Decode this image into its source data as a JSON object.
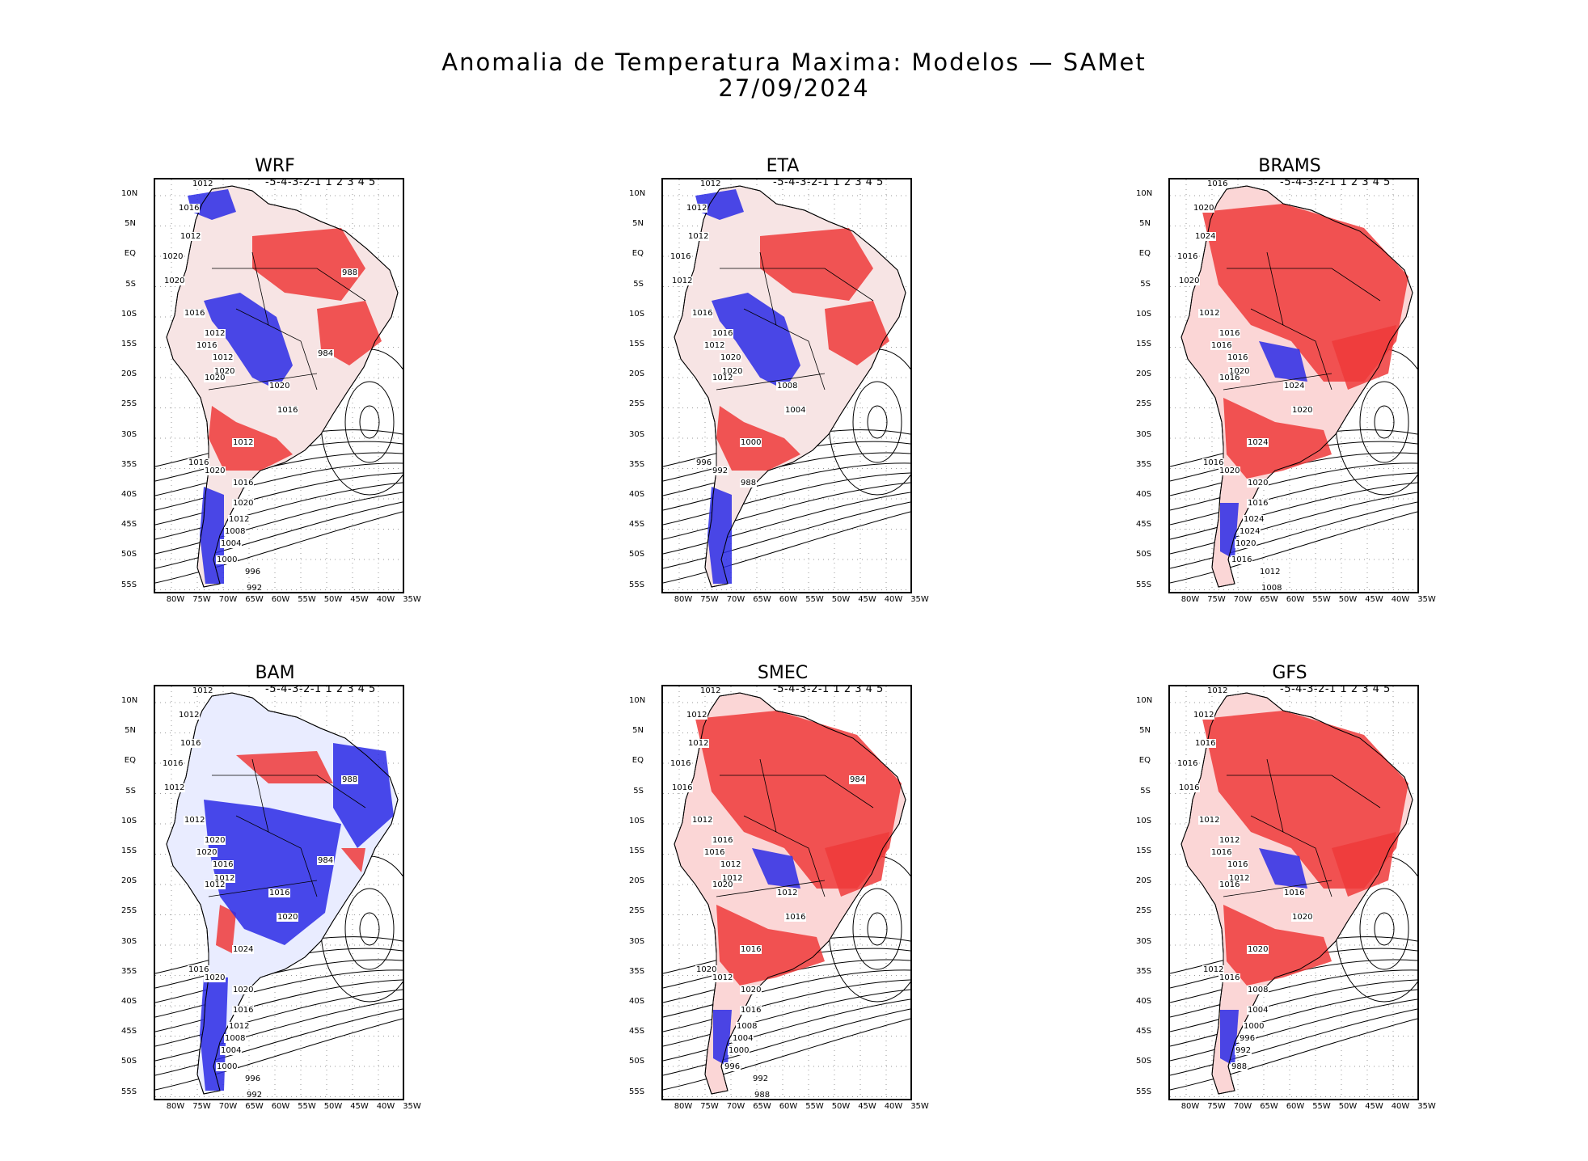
{
  "title": {
    "line1": "Anomalia de Temperatura Maxima: Modelos — SAMet",
    "line2": "27/09/2024"
  },
  "axes": {
    "lat_ticks": [
      "10N",
      "5N",
      "EQ",
      "5S",
      "10S",
      "15S",
      "20S",
      "25S",
      "30S",
      "35S",
      "40S",
      "45S",
      "50S",
      "55S"
    ],
    "lon_ticks": [
      "80W",
      "75W",
      "70W",
      "65W",
      "60W",
      "55W",
      "50W",
      "45W",
      "40W",
      "35W"
    ]
  },
  "colorbar": {
    "labels": "-5-4-3-2-1 1 2 3 4 5",
    "colors": [
      "#1515e0",
      "#3a3aee",
      "#6a6af2",
      "#9c9cf6",
      "#cbcbfa",
      "#ffffff",
      "#fbcfcf",
      "#f69a9a",
      "#f26a6a",
      "#ee3a3a",
      "#e01515"
    ]
  },
  "panels": [
    {
      "name": "WRF",
      "dominant": "mixed",
      "contours": [
        "1012",
        "1016",
        "1012",
        "1020",
        "1020",
        "1016",
        "1012",
        "1016",
        "1012",
        "1020",
        "1020",
        "1020",
        "1016",
        "1012",
        "1016",
        "1020",
        "1016",
        "1020",
        "1012",
        "1008",
        "1004",
        "1000",
        "996",
        "992",
        "988",
        "984"
      ]
    },
    {
      "name": "ETA",
      "dominant": "mixed",
      "contours": [
        "1012",
        "1012",
        "1012",
        "1016",
        "1012",
        "1016",
        "1016",
        "1012",
        "1020",
        "1020",
        "1012",
        "1008",
        "1004",
        "1000",
        "996",
        "992",
        "988"
      ]
    },
    {
      "name": "BRAMS",
      "dominant": "warm",
      "contours": [
        "1016",
        "1020",
        "1024",
        "1016",
        "1020",
        "1012",
        "1016",
        "1016",
        "1016",
        "1020",
        "1016",
        "1024",
        "1020",
        "1024",
        "1016",
        "1020",
        "1020",
        "1016",
        "1024",
        "1024",
        "1020",
        "1016",
        "1012",
        "1008"
      ]
    },
    {
      "name": "BAM",
      "dominant": "cold",
      "contours": [
        "1012",
        "1012",
        "1016",
        "1016",
        "1012",
        "1012",
        "1020",
        "1020",
        "1016",
        "1012",
        "1012",
        "1016",
        "1020",
        "1024",
        "1016",
        "1020",
        "1020",
        "1016",
        "1012",
        "1008",
        "1004",
        "1000",
        "996",
        "992",
        "988",
        "984"
      ]
    },
    {
      "name": "SMEC",
      "dominant": "warm",
      "contours": [
        "1012",
        "1012",
        "1012",
        "1016",
        "1016",
        "1012",
        "1016",
        "1016",
        "1012",
        "1012",
        "1020",
        "1012",
        "1016",
        "1016",
        "1020",
        "1012",
        "1020",
        "1016",
        "1008",
        "1004",
        "1000",
        "996",
        "992",
        "988",
        "984"
      ]
    },
    {
      "name": "GFS",
      "dominant": "warm",
      "contours": [
        "1012",
        "1012",
        "1016",
        "1016",
        "1016",
        "1012",
        "1012",
        "1016",
        "1016",
        "1012",
        "1016",
        "1016",
        "1020",
        "1020",
        "1012",
        "1016",
        "1008",
        "1004",
        "1000",
        "996",
        "992",
        "988"
      ]
    }
  ]
}
